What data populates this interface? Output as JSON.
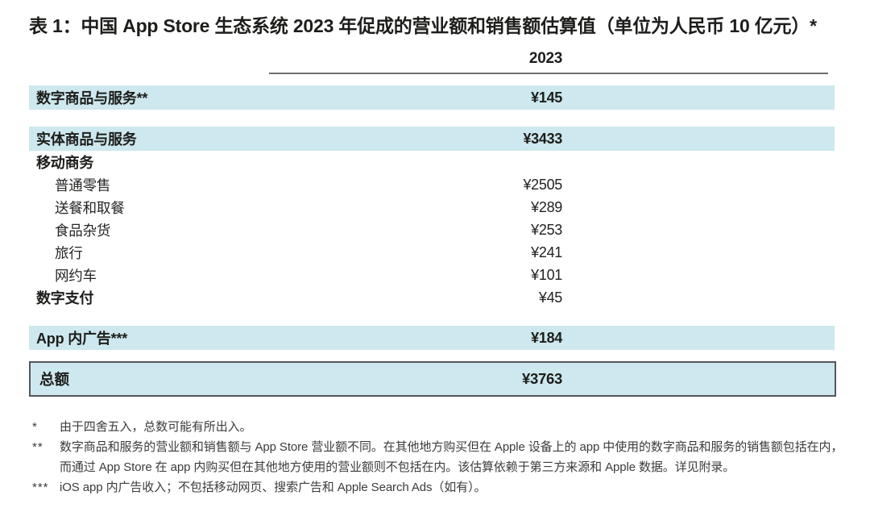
{
  "page": {
    "title": "表 1：中国 App Store 生态系统 2023 年促成的营业额和销售额估算值（单位为人民币 10 亿元）*"
  },
  "table": {
    "year_header": "2023",
    "currency_symbol": "¥",
    "rows": [
      {
        "label": "数字商品与服务**",
        "value": "¥145",
        "highlight": true,
        "bold": true,
        "gap_before": false,
        "indent": false
      },
      {
        "label": "实体商品与服务",
        "value": "¥3433",
        "highlight": true,
        "bold": true,
        "gap_before": true,
        "indent": false
      },
      {
        "label": "移动商务",
        "value": "",
        "highlight": false,
        "bold": true,
        "gap_before": false,
        "indent": false
      },
      {
        "label": "普通零售",
        "value": "¥2505",
        "highlight": false,
        "bold": false,
        "gap_before": false,
        "indent": true
      },
      {
        "label": "送餐和取餐",
        "value": "¥289",
        "highlight": false,
        "bold": false,
        "gap_before": false,
        "indent": true
      },
      {
        "label": "食品杂货",
        "value": "¥253",
        "highlight": false,
        "bold": false,
        "gap_before": false,
        "indent": true
      },
      {
        "label": "旅行",
        "value": "¥241",
        "highlight": false,
        "bold": false,
        "gap_before": false,
        "indent": true
      },
      {
        "label": "网约车",
        "value": "¥101",
        "highlight": false,
        "bold": false,
        "gap_before": false,
        "indent": true
      },
      {
        "label": "数字支付",
        "value": "¥45",
        "highlight": false,
        "bold": true,
        "gap_before": false,
        "indent": false
      },
      {
        "label": "App 内广告***",
        "value": "¥184",
        "highlight": true,
        "bold": true,
        "gap_before": true,
        "indent": false
      }
    ],
    "total": {
      "label": "总额",
      "value": "¥3763"
    }
  },
  "footnotes": [
    {
      "marker": "*",
      "text": "由于四舍五入，总数可能有所出入。"
    },
    {
      "marker": "**",
      "text": "数字商品和服务的营业额和销售额与 App Store 营业额不同。在其他地方购买但在 Apple 设备上的 app 中使用的数字商品和服务的销售额包括在内，而通过 App Store 在 app 内购买但在其他地方使用的营业额则不包括在内。该估算依赖于第三方来源和 Apple 数据。详见附录。"
    },
    {
      "marker": "***",
      "text": "iOS app 内广告收入；不包括移动网页、搜索广告和 Apple Search Ads（如有）。"
    }
  ],
  "colors": {
    "row_highlight": "#cde8ee",
    "header_rule": "#6d6e71",
    "total_border": "#55565a",
    "text": "#1d1d1b"
  }
}
